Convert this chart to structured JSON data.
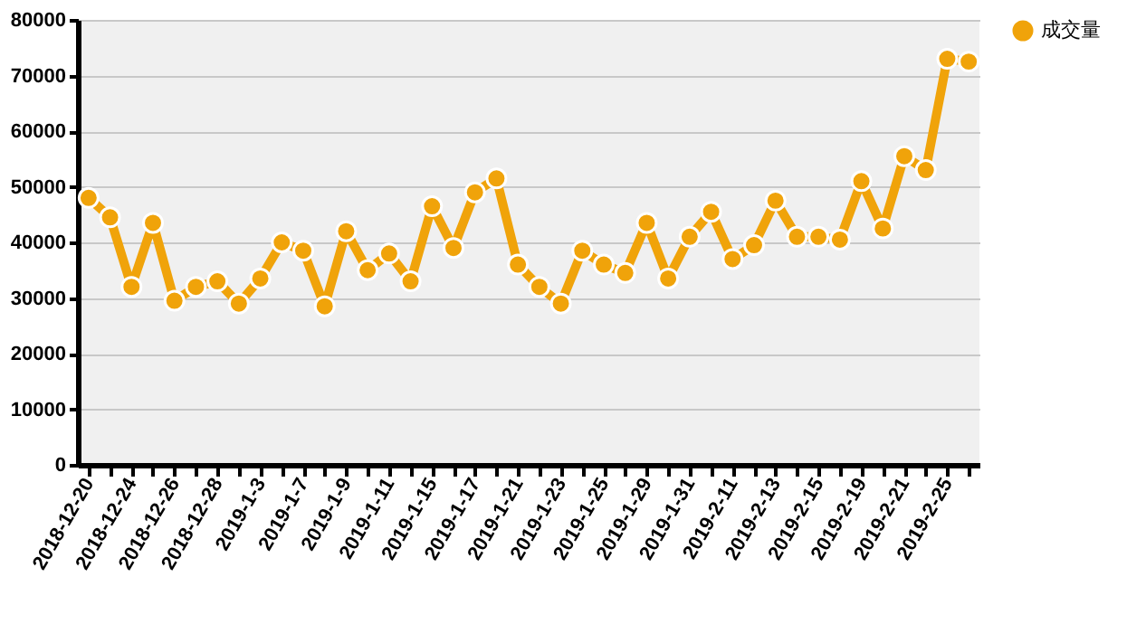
{
  "chart_data": {
    "type": "line",
    "categories": [
      "2018-12-20",
      null,
      "2018-12-24",
      null,
      "2018-12-26",
      null,
      "2018-12-28",
      null,
      "2019-1-3",
      null,
      "2019-1-7",
      null,
      "2019-1-9",
      null,
      "2019-1-11",
      null,
      "2019-1-15",
      null,
      "2019-1-17",
      null,
      "2019-1-21",
      null,
      "2019-1-23",
      null,
      "2019-1-25",
      null,
      "2019-1-29",
      null,
      "2019-1-31",
      null,
      "2019-2-11",
      null,
      "2019-2-13",
      null,
      "2019-2-15",
      null,
      "2019-2-19",
      null,
      "2019-2-21",
      null,
      "2019-2-25",
      null
    ],
    "series": [
      {
        "name": "成交量",
        "color": "#f0a30a",
        "values": [
          48000,
          44500,
          32000,
          43500,
          29500,
          32000,
          33000,
          29000,
          33500,
          40000,
          38500,
          28500,
          42000,
          35000,
          38000,
          33000,
          46500,
          39000,
          49000,
          51500,
          36000,
          32000,
          29000,
          38500,
          36000,
          34500,
          43500,
          33500,
          41000,
          45500,
          37000,
          39500,
          47500,
          41000,
          41000,
          40500,
          51000,
          42500,
          55500,
          53000,
          73000,
          72500
        ]
      }
    ],
    "ylim": [
      0,
      80000
    ],
    "yticks": [
      0,
      10000,
      20000,
      30000,
      40000,
      50000,
      60000,
      70000,
      80000
    ],
    "grid": "y",
    "legend": "right",
    "marker": "circle",
    "line_style": "solid"
  }
}
